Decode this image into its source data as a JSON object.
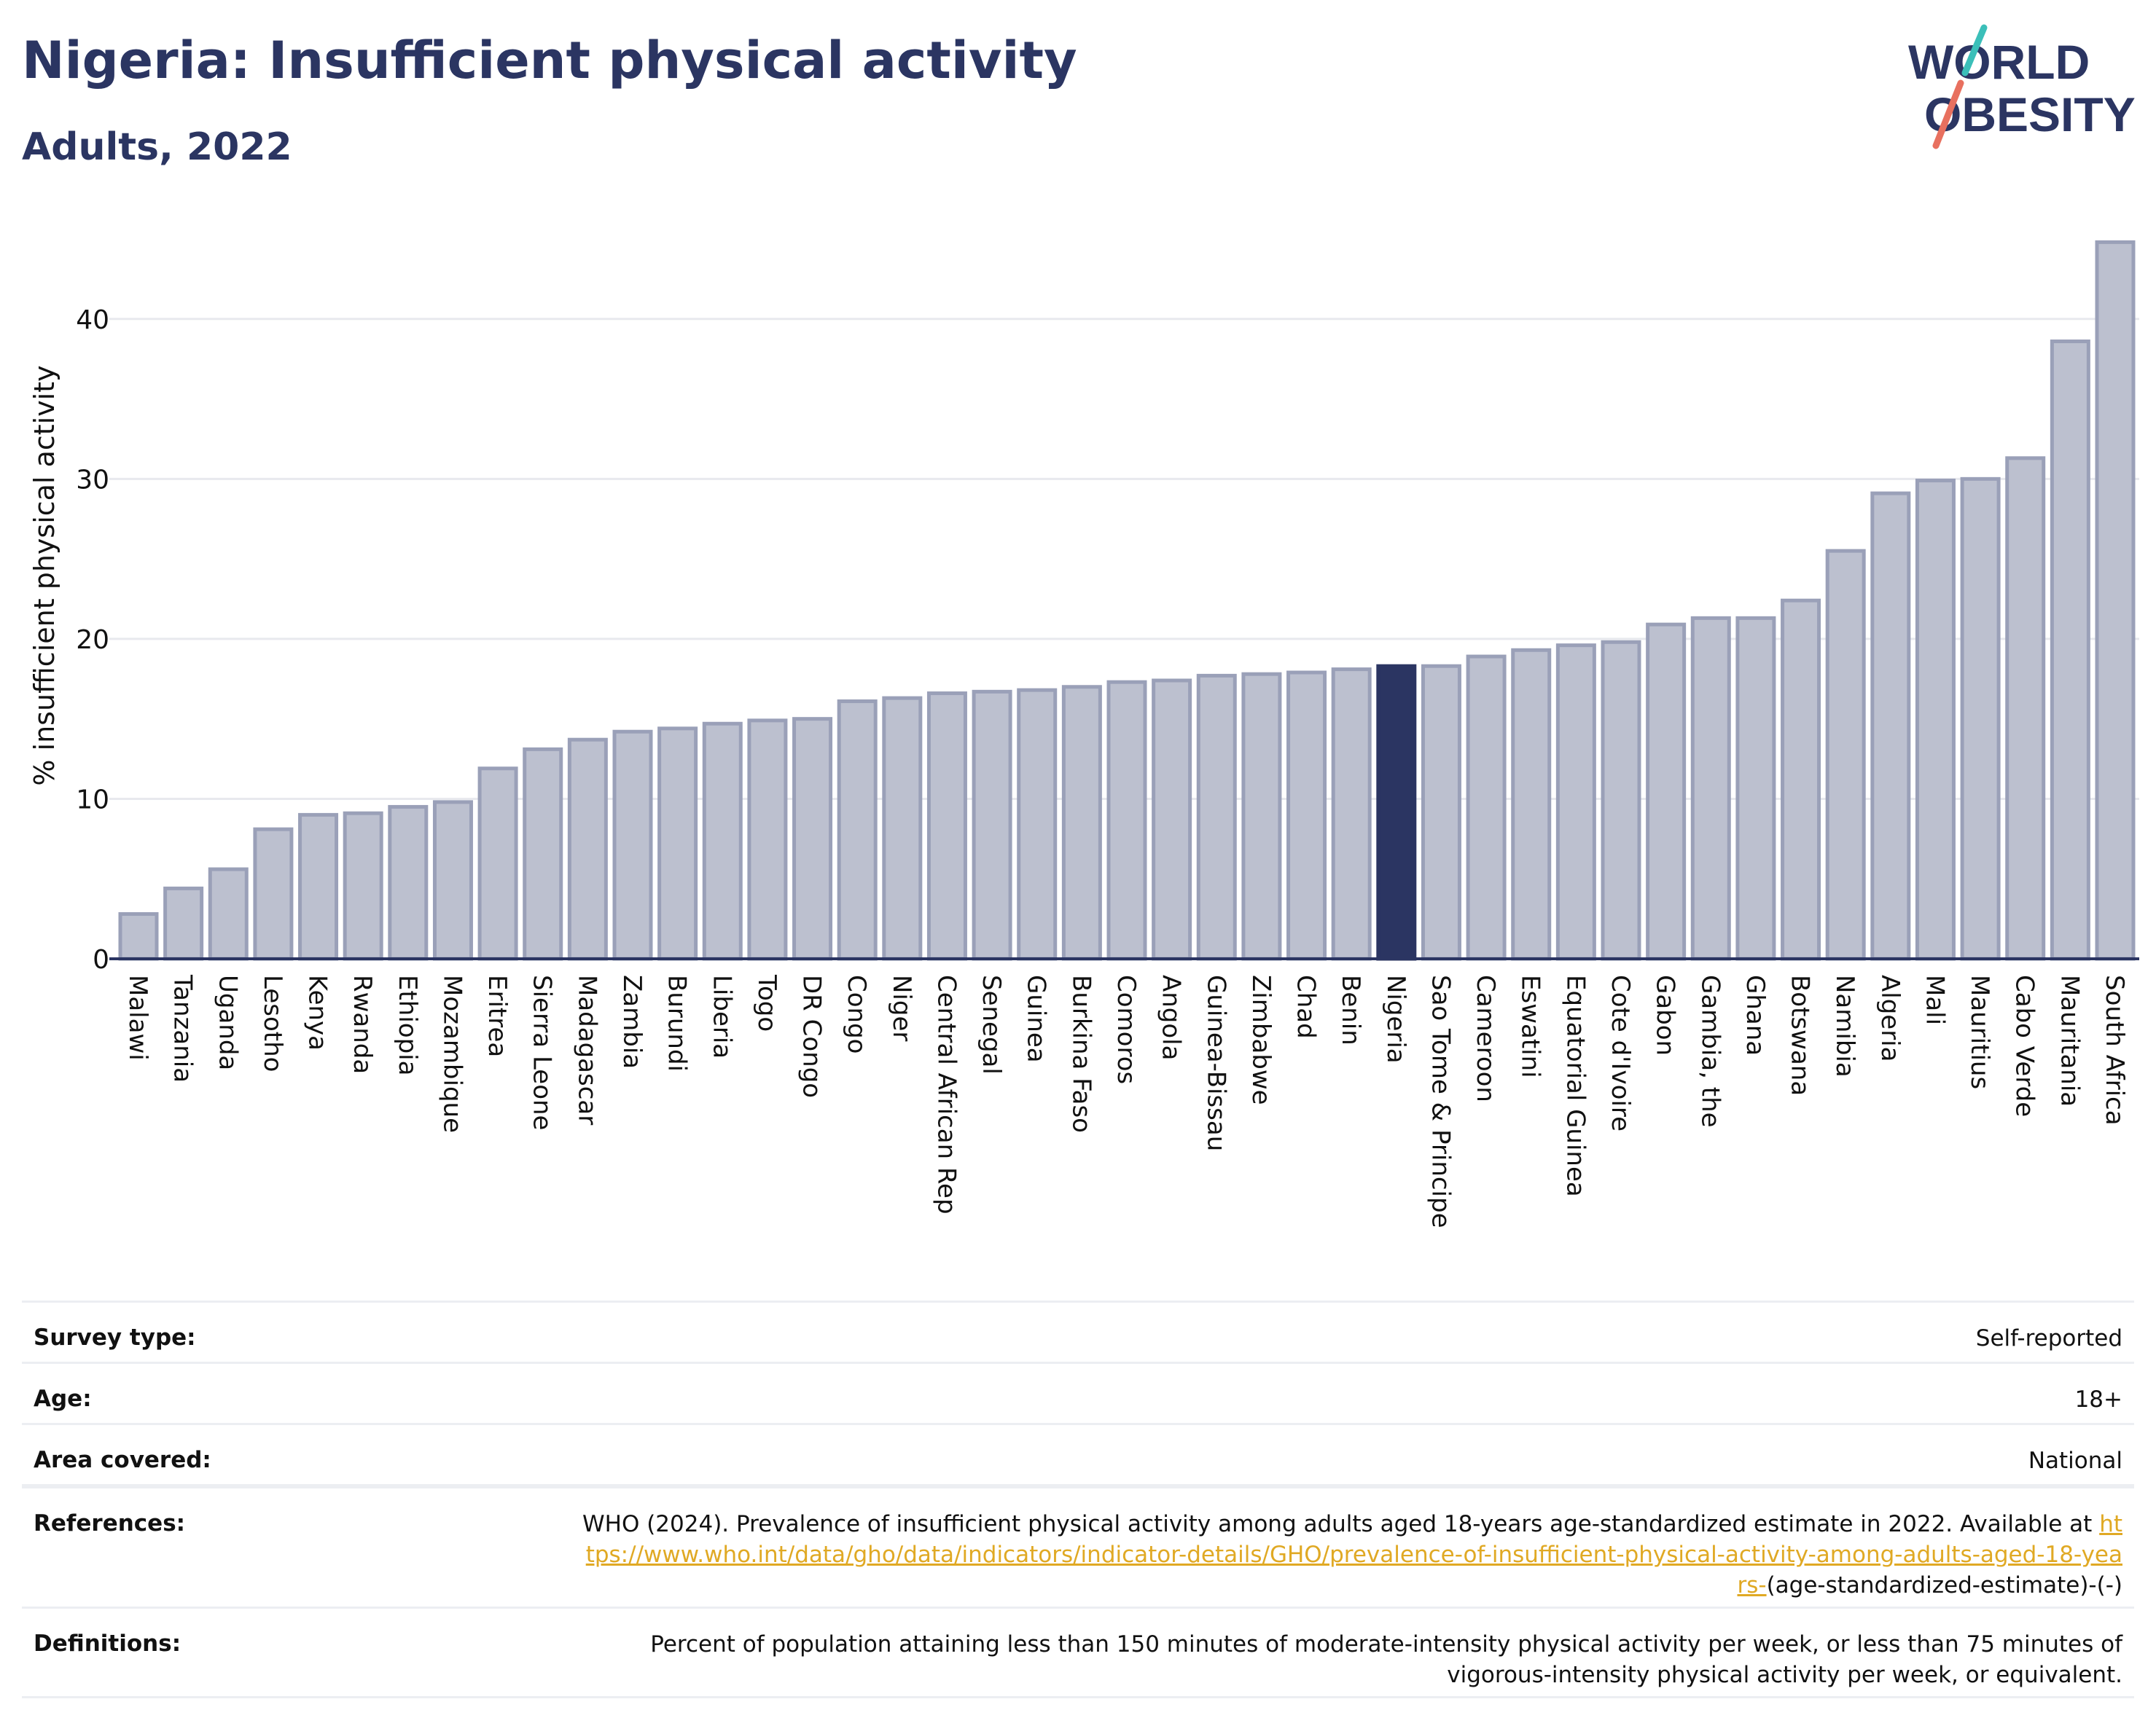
{
  "header": {
    "title": "Nigeria: Insufficient physical activity",
    "subtitle": "Adults, 2022",
    "logo_line1": "WORLD",
    "logo_line2": "OBESITY"
  },
  "colors": {
    "bar": "#bcc0cf",
    "bar_border": "#9aa0b8",
    "highlight": "#2b3562",
    "grid": "#e8e9ee",
    "axis": "#2b3562",
    "logo_slash_top": "#3bbfb9",
    "logo_slash_bottom": "#e8705f"
  },
  "chart_data": {
    "type": "bar",
    "title": "Nigeria: Insufficient physical activity",
    "subtitle": "Adults, 2022",
    "xlabel": "",
    "ylabel": "% insufficient physical activity",
    "ylim": [
      0,
      45
    ],
    "yticks": [
      0,
      10,
      20,
      30,
      40
    ],
    "grid": true,
    "highlight": "Nigeria",
    "categories": [
      "Malawi",
      "Tanzania",
      "Uganda",
      "Lesotho",
      "Kenya",
      "Rwanda",
      "Ethiopia",
      "Mozambique",
      "Eritrea",
      "Sierra Leone",
      "Madagascar",
      "Zambia",
      "Burundi",
      "Liberia",
      "Togo",
      "DR Congo",
      "Congo",
      "Niger",
      "Central African Rep",
      "Senegal",
      "Guinea",
      "Burkina Faso",
      "Comoros",
      "Angola",
      "Guinea-Bissau",
      "Zimbabwe",
      "Chad",
      "Benin",
      "Nigeria",
      "Sao Tome & Principe",
      "Cameroon",
      "Eswatini",
      "Equatorial Guinea",
      "Cote d'Ivoire",
      "Gabon",
      "Gambia, the",
      "Ghana",
      "Botswana",
      "Namibia",
      "Algeria",
      "Mali",
      "Mauritius",
      "Cabo Verde",
      "Mauritania",
      "South Africa"
    ],
    "values": [
      2.8,
      4.4,
      5.6,
      8.1,
      9.0,
      9.1,
      9.5,
      9.8,
      11.9,
      13.1,
      13.7,
      14.2,
      14.4,
      14.7,
      14.9,
      15.0,
      16.1,
      16.3,
      16.6,
      16.7,
      16.8,
      17.0,
      17.3,
      17.4,
      17.7,
      17.8,
      17.9,
      18.1,
      18.3,
      18.3,
      18.9,
      19.3,
      19.6,
      19.8,
      20.9,
      21.3,
      21.3,
      22.4,
      25.5,
      29.1,
      29.9,
      30.0,
      31.3,
      38.6,
      44.8
    ]
  },
  "meta": {
    "rows": [
      {
        "label": "Survey type:",
        "value": "Self-reported"
      },
      {
        "label": "Age:",
        "value": "18+"
      },
      {
        "label": "Area covered:",
        "value": "National"
      }
    ],
    "references_label": "References:",
    "references_text": "WHO (2024). Prevalence of insufficient physical activity among adults aged 18-years age-standardized estimate in 2022. Available at",
    "references_link": "https://www.who.int/data/gho/data/indicators/indicator-details/GHO/prevalence-of-insufficient-physical-activity-among-adults-aged-18-years-",
    "references_suffix": "(age-standardized-estimate)-(-)",
    "definitions_label": "Definitions:",
    "definitions_text": "Percent of population attaining less than 150 minutes of moderate-intensity physical activity per week, or less than 75 minutes of vigorous-intensity physical activity per week, or equivalent."
  }
}
